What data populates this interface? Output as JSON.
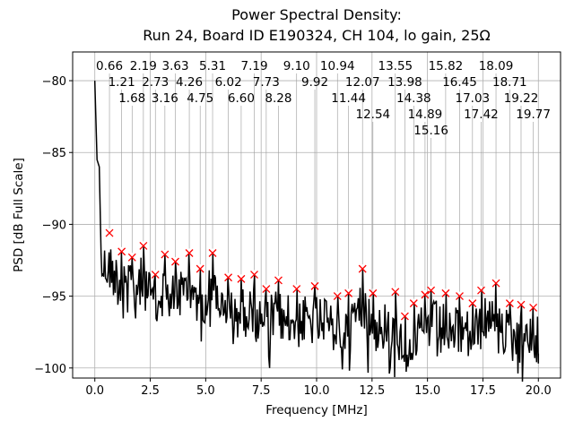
{
  "chart_data": {
    "type": "line",
    "title": [
      "Power Spectral Density:",
      "Run 24, Board ID E190324, CH 104, lo gain, 25Ω"
    ],
    "xlabel": "Frequency [MHz]",
    "ylabel": "PSD [dB Full Scale]",
    "xlim": [
      -1.0,
      21.0
    ],
    "ylim": [
      -100.7,
      -78.0
    ],
    "xticks": [
      0.0,
      2.5,
      5.0,
      7.5,
      10.0,
      12.5,
      15.0,
      17.5,
      20.0
    ],
    "xtick_labels": [
      "0.0",
      "2.5",
      "5.0",
      "7.5",
      "10.0",
      "12.5",
      "15.0",
      "17.5",
      "20.0"
    ],
    "yticks": [
      -80,
      -85,
      -90,
      -95,
      -100
    ],
    "ytick_labels": [
      "−80",
      "−85",
      "−90",
      "−95",
      "−100"
    ],
    "grid": true,
    "line_color": "#000000",
    "marker_color": "#ff0000",
    "trace_start": {
      "x": 0.0,
      "y": -80.0
    },
    "peaks": [
      {
        "x": 0.66,
        "y": -90.6,
        "label": "0.66"
      },
      {
        "x": 1.21,
        "y": -91.9,
        "label": "1.21"
      },
      {
        "x": 1.68,
        "y": -92.3,
        "label": "1.68"
      },
      {
        "x": 2.19,
        "y": -91.5,
        "label": "2.19"
      },
      {
        "x": 2.73,
        "y": -93.5,
        "label": "2.73"
      },
      {
        "x": 3.16,
        "y": -92.1,
        "label": "3.16"
      },
      {
        "x": 3.63,
        "y": -92.6,
        "label": "3.63"
      },
      {
        "x": 4.26,
        "y": -92.0,
        "label": "4.26"
      },
      {
        "x": 4.75,
        "y": -93.1,
        "label": "4.75"
      },
      {
        "x": 5.31,
        "y": -92.0,
        "label": "5.31"
      },
      {
        "x": 6.02,
        "y": -93.7,
        "label": "6.02"
      },
      {
        "x": 6.6,
        "y": -93.8,
        "label": "6.60"
      },
      {
        "x": 7.19,
        "y": -93.5,
        "label": "7.19"
      },
      {
        "x": 7.73,
        "y": -94.5,
        "label": "7.73"
      },
      {
        "x": 8.28,
        "y": -93.9,
        "label": "8.28"
      },
      {
        "x": 9.1,
        "y": -94.5,
        "label": "9.10"
      },
      {
        "x": 9.92,
        "y": -94.3,
        "label": "9.92"
      },
      {
        "x": 10.94,
        "y": -95.0,
        "label": "10.94"
      },
      {
        "x": 11.44,
        "y": -94.8,
        "label": "11.44"
      },
      {
        "x": 12.07,
        "y": -93.1,
        "label": "12.07"
      },
      {
        "x": 12.54,
        "y": -94.8,
        "label": "12.54"
      },
      {
        "x": 13.55,
        "y": -94.7,
        "label": "13.55"
      },
      {
        "x": 13.98,
        "y": -96.4,
        "label": "13.98"
      },
      {
        "x": 14.38,
        "y": -95.5,
        "label": "14.38"
      },
      {
        "x": 14.89,
        "y": -94.9,
        "label": "14.89"
      },
      {
        "x": 15.16,
        "y": -94.6,
        "label": "15.16"
      },
      {
        "x": 15.82,
        "y": -94.8,
        "label": "15.82"
      },
      {
        "x": 16.45,
        "y": -95.0,
        "label": "16.45"
      },
      {
        "x": 17.03,
        "y": -95.5,
        "label": "17.03"
      },
      {
        "x": 17.42,
        "y": -94.6,
        "label": "17.42"
      },
      {
        "x": 18.09,
        "y": -94.1,
        "label": "18.09"
      },
      {
        "x": 18.71,
        "y": -95.5,
        "label": "18.71"
      },
      {
        "x": 19.22,
        "y": -95.6,
        "label": "19.22"
      },
      {
        "x": 19.77,
        "y": -95.8,
        "label": "19.77"
      }
    ]
  }
}
